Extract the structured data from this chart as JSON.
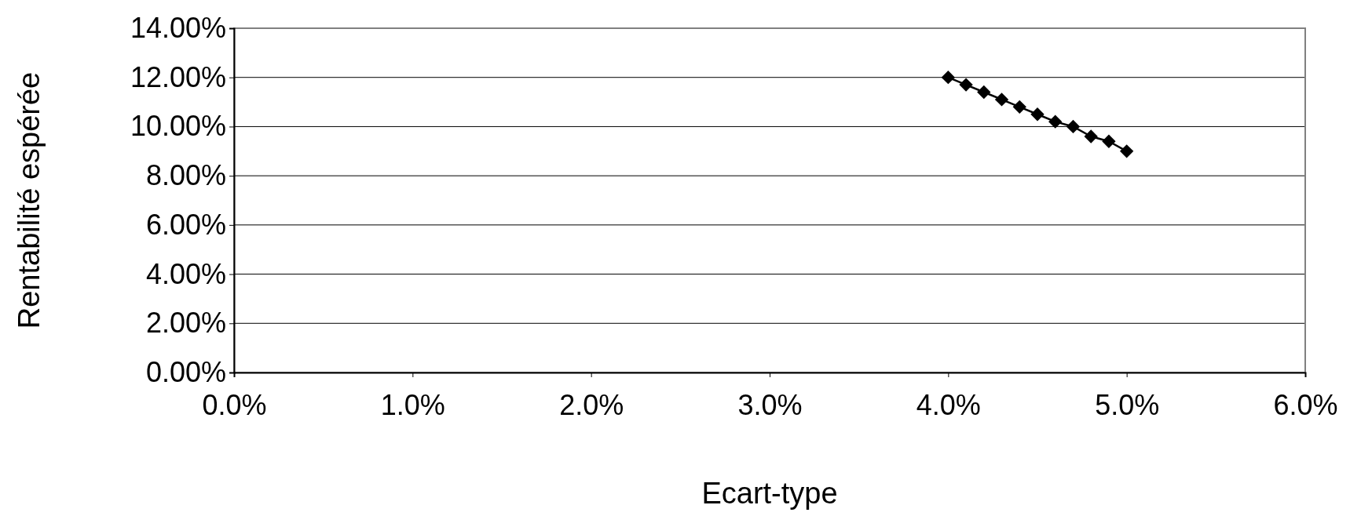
{
  "chart_data": {
    "type": "line",
    "xlabel": "Ecart-type",
    "ylabel": "Rentabilité espérée",
    "x": [
      4.0,
      4.1,
      4.2,
      4.3,
      4.4,
      4.5,
      4.6,
      4.7,
      4.8,
      4.9,
      5.0
    ],
    "series": [
      {
        "color": "#000000",
        "values": [
          12.0,
          11.7,
          11.4,
          11.1,
          10.8,
          10.5,
          10.2,
          10.0,
          9.6,
          9.4,
          9.0
        ]
      }
    ],
    "xlim": [
      0,
      6
    ],
    "xticks": [
      {
        "value": 0,
        "label": "0.0%"
      },
      {
        "value": 1,
        "label": "1.0%"
      },
      {
        "value": 2,
        "label": "2.0%"
      },
      {
        "value": 3,
        "label": "3.0%"
      },
      {
        "value": 4,
        "label": "4.0%"
      },
      {
        "value": 5,
        "label": "5.0%"
      },
      {
        "value": 6,
        "label": "6.0%"
      }
    ],
    "ylim": [
      0,
      14
    ],
    "yticks": [
      {
        "value": 0,
        "label": "0.00%"
      },
      {
        "value": 2,
        "label": "2.00%"
      },
      {
        "value": 4,
        "label": "4.00%"
      },
      {
        "value": 6,
        "label": "6.00%"
      },
      {
        "value": 8,
        "label": "8.00%"
      },
      {
        "value": 10,
        "label": "10.00%"
      },
      {
        "value": 12,
        "label": "12.00%"
      },
      {
        "value": 14,
        "label": "14.00%"
      }
    ],
    "grid": "y",
    "marker": "diamond",
    "line_style": "solid"
  }
}
